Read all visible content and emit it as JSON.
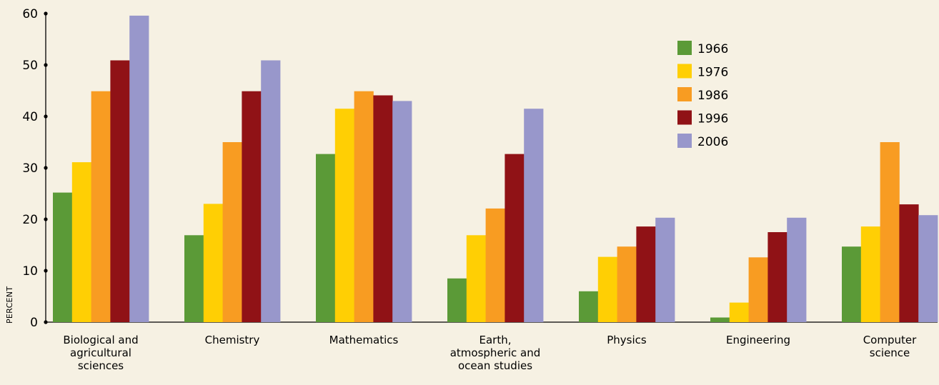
{
  "chart_data": {
    "type": "bar",
    "title": "",
    "xlabel": "",
    "ylabel": "PERCENT",
    "ylim": [
      0,
      60
    ],
    "yticks": [
      "0",
      "10",
      "20",
      "30",
      "40",
      "50",
      "60"
    ],
    "grid": false,
    "legend_position": "top-right",
    "categories": [
      [
        "Biological and",
        "agricultural",
        "sciences"
      ],
      [
        "Chemistry"
      ],
      [
        "Mathematics"
      ],
      [
        "Earth,",
        "atmospheric and",
        "ocean studies"
      ],
      [
        "Physics"
      ],
      [
        "Engineering"
      ],
      [
        "Computer",
        "science"
      ]
    ],
    "series": [
      {
        "name": "1966",
        "color": "#5b9a37",
        "values": [
          25.2,
          16.9,
          32.7,
          8.5,
          6.0,
          0.9,
          14.7
        ]
      },
      {
        "name": "1976",
        "color": "#ffcf04",
        "values": [
          31.1,
          23.0,
          41.5,
          16.9,
          12.7,
          3.8,
          18.6
        ]
      },
      {
        "name": "1986",
        "color": "#f89c22",
        "values": [
          44.9,
          35.0,
          44.9,
          22.1,
          14.7,
          12.6,
          35.0
        ]
      },
      {
        "name": "1996",
        "color": "#901216",
        "values": [
          50.9,
          44.9,
          44.1,
          32.7,
          18.6,
          17.5,
          22.9
        ]
      },
      {
        "name": "2006",
        "color": "#9897cb",
        "values": [
          59.6,
          50.9,
          43.0,
          41.5,
          20.3,
          20.3,
          20.8
        ]
      }
    ]
  }
}
